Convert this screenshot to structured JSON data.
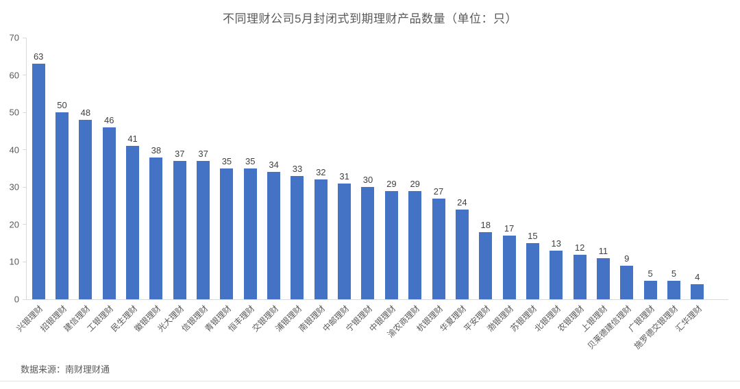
{
  "chart_data": {
    "type": "bar",
    "title": "不同理财公司5月封闭式到期理财产品数量（单位：只）",
    "categories": [
      "兴银理财",
      "招银理财",
      "建信理财",
      "工银理财",
      "民生理财",
      "徽银理财",
      "光大理财",
      "信银理财",
      "青银理财",
      "恒丰理财",
      "交银理财",
      "浦银理财",
      "南银理财",
      "中邮理财",
      "宁银理财",
      "中银理财",
      "渝农商理财",
      "杭银理财",
      "华夏理财",
      "平安理财",
      "渤银理财",
      "苏银理财",
      "北银理财",
      "农银理财",
      "上银理财",
      "贝莱德建信理财",
      "广银理财",
      "施罗德交银理财",
      "汇华理财"
    ],
    "values": [
      63,
      50,
      48,
      46,
      41,
      38,
      37,
      37,
      35,
      35,
      34,
      33,
      32,
      31,
      30,
      29,
      29,
      27,
      24,
      18,
      17,
      15,
      13,
      12,
      11,
      9,
      5,
      5,
      4
    ],
    "xlabel": "",
    "ylabel": "",
    "ylim": [
      0,
      70
    ],
    "yticks": [
      0,
      10,
      20,
      30,
      40,
      50,
      60,
      70
    ],
    "grid": false,
    "legend": false,
    "bar_color": "#4472C4"
  },
  "footer": {
    "source": "数据来源：南财理财通"
  },
  "colors": {
    "bar": "#4472C4",
    "axis_line": "#D9D9D9",
    "tick_text": "#595959",
    "value_text": "#404040",
    "title_text": "#595959",
    "divider": "#E4E4E4",
    "background": "#FFFFFF"
  }
}
